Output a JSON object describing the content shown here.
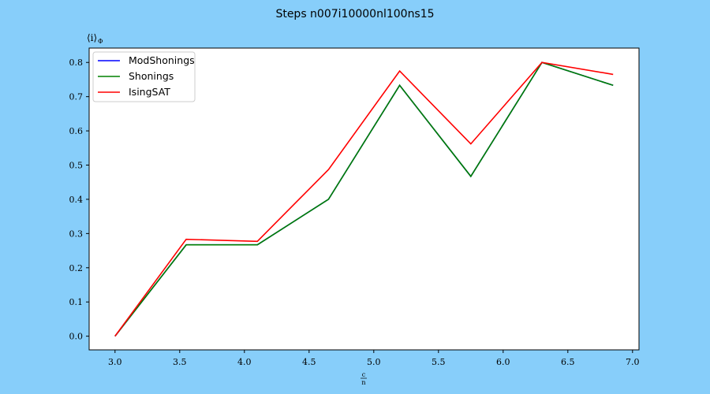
{
  "chart_data": {
    "type": "line",
    "title": "Steps n007i10000nl100ns15",
    "xlabel_num": "c",
    "xlabel_den": "n",
    "ylabel": "⟨i⟩",
    "ylabel_sub": "Φ",
    "xlim": [
      2.8,
      7.05
    ],
    "ylim": [
      -0.04,
      0.842
    ],
    "xticks": [
      3.0,
      3.5,
      4.0,
      4.5,
      5.0,
      5.5,
      6.0,
      6.5,
      7.0
    ],
    "xtick_labels": [
      "3.0",
      "3.5",
      "4.0",
      "4.5",
      "5.0",
      "5.5",
      "6.0",
      "6.5",
      "7.0"
    ],
    "yticks": [
      0.0,
      0.1,
      0.2,
      0.3,
      0.4,
      0.5,
      0.6,
      0.7,
      0.8
    ],
    "ytick_labels": [
      "0.0",
      "0.1",
      "0.2",
      "0.3",
      "0.4",
      "0.5",
      "0.6",
      "0.7",
      "0.8"
    ],
    "grid": false,
    "legend_position": "top-left",
    "x": [
      3.0,
      3.55,
      4.1,
      4.65,
      5.2,
      5.75,
      6.3,
      6.85
    ],
    "series": [
      {
        "name": "ModShonings",
        "color": "#0000ff",
        "values": [
          0.0,
          0.267,
          0.267,
          0.4,
          0.733,
          0.467,
          0.8,
          0.733
        ]
      },
      {
        "name": "Shonings",
        "color": "#008000",
        "values": [
          0.0,
          0.267,
          0.267,
          0.4,
          0.733,
          0.467,
          0.8,
          0.733
        ]
      },
      {
        "name": "IsingSAT",
        "color": "#ff0000",
        "values": [
          0.0,
          0.283,
          0.277,
          0.487,
          0.775,
          0.562,
          0.8,
          0.765
        ]
      }
    ]
  }
}
